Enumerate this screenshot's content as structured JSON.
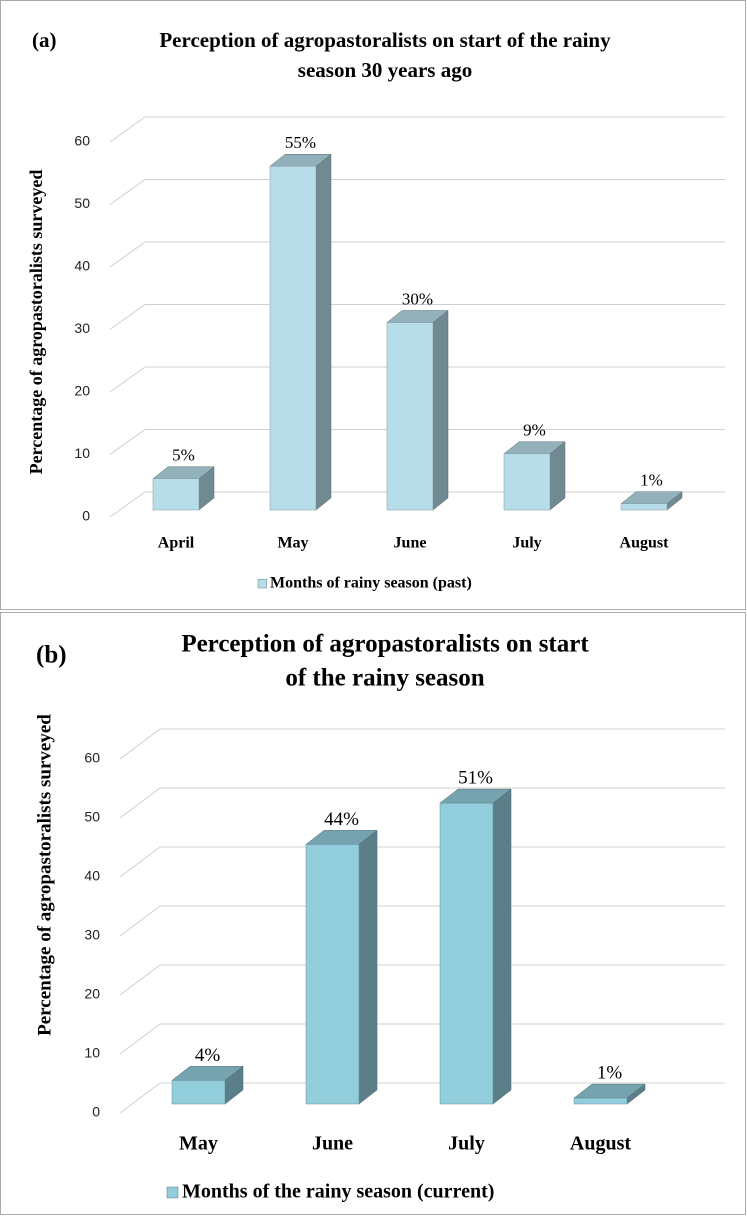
{
  "chart_data": [
    {
      "type": "bar3d",
      "panel_label": "(a)",
      "title": [
        "Perception of agropastoralists on start of the rainy",
        "season 30 years ago"
      ],
      "y_label": "Percentage of agropastoralists  surveyed",
      "categories": [
        "April",
        "May",
        "June",
        "July",
        "August"
      ],
      "series": [
        {
          "name": "Months of rainy season (past)",
          "color": "#b7dde8",
          "values": [
            5,
            55,
            30,
            9,
            1
          ],
          "value_labels": [
            "5%",
            "55%",
            "30%",
            "9%",
            "1%"
          ]
        }
      ],
      "ylim": [
        0,
        60
      ],
      "yticks": [
        0,
        10,
        20,
        30,
        40,
        50,
        60
      ],
      "grid": true
    },
    {
      "type": "bar3d",
      "panel_label": "(b)",
      "title": [
        "Perception of agropastoralists on start",
        "of the rainy season"
      ],
      "y_label": "Percentage of agropastoralists  surveyed",
      "categories": [
        "May",
        "June",
        "July",
        "August"
      ],
      "series": [
        {
          "name": "Months of the rainy season (current)",
          "color": "#92cddc",
          "values": [
            4,
            44,
            51,
            1
          ],
          "value_labels": [
            "4%",
            "44%",
            "51%",
            "1%"
          ]
        }
      ],
      "ylim": [
        0,
        60
      ],
      "yticks": [
        0,
        10,
        20,
        30,
        40,
        50,
        60
      ],
      "grid": true
    }
  ]
}
